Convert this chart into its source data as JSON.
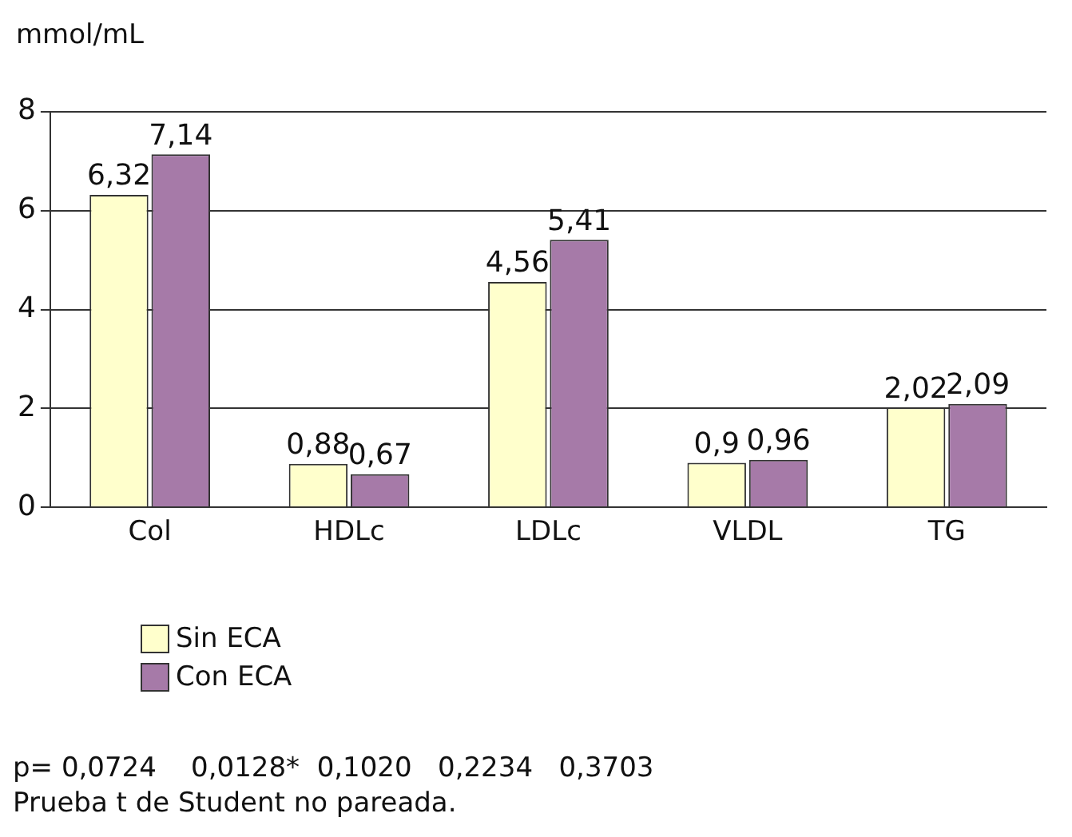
{
  "chart_data": {
    "type": "bar",
    "ylabel": "mmol/mL",
    "categories": [
      "Col",
      "HDLc",
      "LDLc",
      "VLDL",
      "TG"
    ],
    "series": [
      {
        "name": "Sin ECA",
        "color": "#ffffcc",
        "values": [
          6.32,
          0.88,
          4.56,
          0.9,
          2.02
        ],
        "value_labels": [
          "6,32",
          "0,88",
          "4,56",
          "0,9",
          "2,02"
        ]
      },
      {
        "name": "Con ECA",
        "color": "#a67aa8",
        "values": [
          7.14,
          0.67,
          5.41,
          0.96,
          2.09
        ],
        "value_labels": [
          "7,14",
          "0,67",
          "5,41",
          "0,96",
          "2,09"
        ]
      }
    ],
    "ylim": [
      0,
      8
    ],
    "yticks": [
      0,
      2,
      4,
      6,
      8
    ],
    "grid": "y",
    "legend": "bottom",
    "annotations": [
      "p= 0,0724    0,0128*  0,1020   0,2234   0,3703",
      "Prueba t de Student no pareada."
    ]
  }
}
